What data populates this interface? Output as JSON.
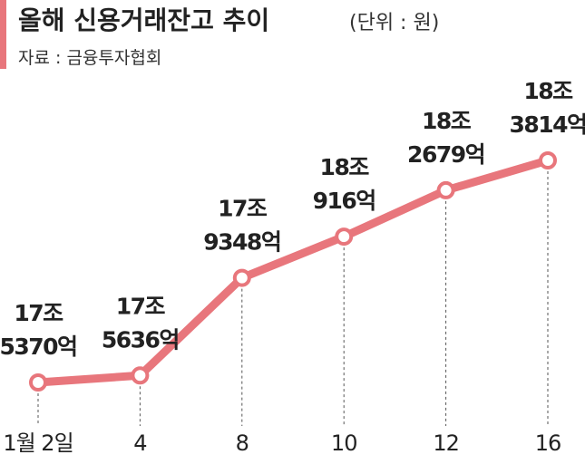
{
  "chart_data": {
    "type": "line",
    "title": "올해 신용거래잔고 추이",
    "unit": "(단위 : 원)",
    "source": "자료 : 금융투자협회",
    "categories": [
      "1월 2일",
      "4",
      "8",
      "10",
      "12",
      "16"
    ],
    "values": [
      17537000000000,
      17563600000000,
      17934800000000,
      18091600000000,
      18267900000000,
      18381400000000
    ],
    "value_labels": [
      [
        "17조",
        "5370억"
      ],
      [
        "17조",
        "5636억"
      ],
      [
        "17조",
        "9348억"
      ],
      [
        "18조",
        "916억"
      ],
      [
        "18조",
        "2679억"
      ],
      [
        "18조",
        "3814억"
      ]
    ],
    "color": "#e8767c"
  }
}
